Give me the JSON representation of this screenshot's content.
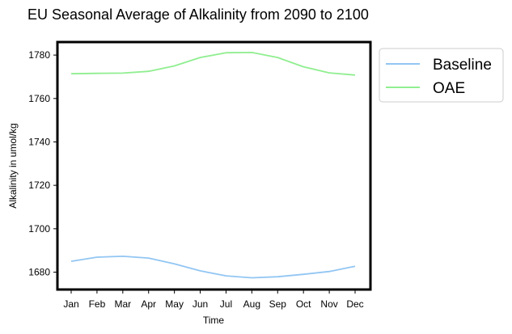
{
  "chart_data": {
    "type": "line",
    "title": "EU Seasonal Average of Alkalinity from 2090 to 2100",
    "xlabel": "Time",
    "ylabel": "Alkalinity in umol/kg",
    "categories": [
      "Jan",
      "Feb",
      "Mar",
      "Apr",
      "May",
      "Jun",
      "Jul",
      "Aug",
      "Sep",
      "Oct",
      "Nov",
      "Dec"
    ],
    "ylim": [
      1672,
      1786
    ],
    "yticks": [
      "1680",
      "1700",
      "1720",
      "1740",
      "1760",
      "1780"
    ],
    "legend_position": "outside-top-right",
    "grid": false,
    "series": [
      {
        "name": "Baseline",
        "color": "#92c6f3",
        "values": [
          1685.0,
          1686.9,
          1687.3,
          1686.5,
          1683.8,
          1680.6,
          1678.3,
          1677.4,
          1677.9,
          1679.0,
          1680.3,
          1682.7
        ]
      },
      {
        "name": "OAE",
        "color": "#90ee90",
        "values": [
          1771.4,
          1771.6,
          1771.7,
          1772.5,
          1775.0,
          1778.9,
          1781.1,
          1781.2,
          1778.9,
          1774.6,
          1771.8,
          1770.8
        ]
      }
    ]
  }
}
